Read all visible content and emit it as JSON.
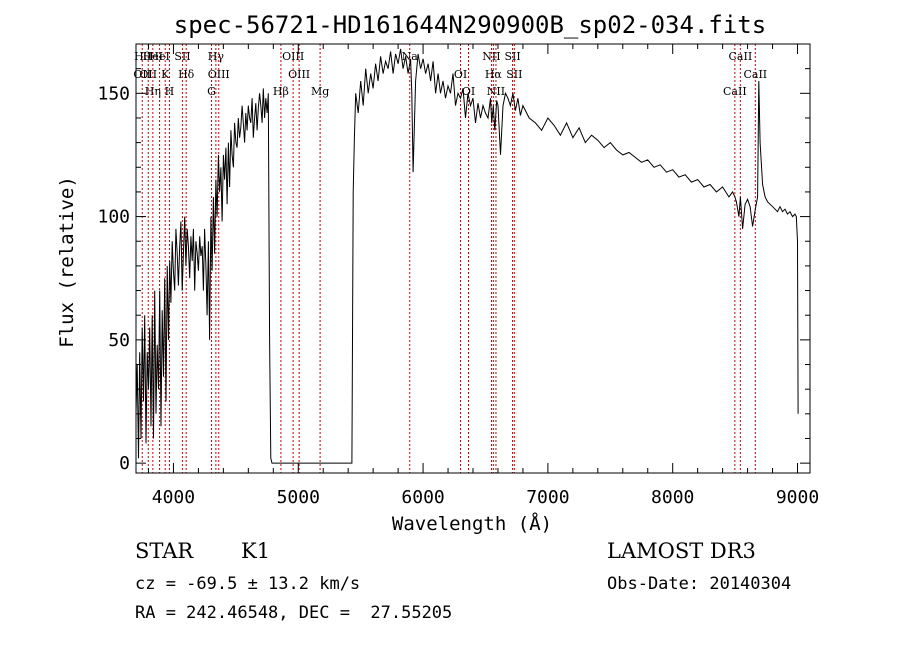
{
  "chart_data": {
    "type": "line",
    "title": "spec-56721-HD161644N290900B_sp02-034.fits",
    "xlabel": "Wavelength (Å)",
    "ylabel": "Flux (relative)",
    "xlim": [
      3700,
      9100
    ],
    "ylim": [
      -4,
      170
    ],
    "x_ticks": [
      4000,
      5000,
      6000,
      7000,
      8000,
      9000
    ],
    "x_tick_labels": [
      "4000",
      "5000",
      "6000",
      "7000",
      "8000",
      "9000"
    ],
    "y_ticks": [
      0,
      50,
      100,
      150
    ],
    "y_tick_labels": [
      "0",
      "50",
      "100",
      "150"
    ],
    "grid": false,
    "series": [
      {
        "name": "spectrum",
        "x": [
          3700,
          3710,
          3720,
          3730,
          3740,
          3750,
          3760,
          3770,
          3780,
          3790,
          3800,
          3810,
          3820,
          3830,
          3840,
          3850,
          3860,
          3870,
          3880,
          3890,
          3900,
          3910,
          3920,
          3930,
          3940,
          3950,
          3960,
          3970,
          3980,
          3990,
          4000,
          4010,
          4020,
          4030,
          4040,
          4050,
          4060,
          4070,
          4080,
          4090,
          4100,
          4110,
          4120,
          4130,
          4140,
          4150,
          4160,
          4170,
          4180,
          4190,
          4200,
          4210,
          4220,
          4230,
          4240,
          4250,
          4260,
          4270,
          4280,
          4290,
          4300,
          4310,
          4320,
          4330,
          4340,
          4350,
          4360,
          4370,
          4380,
          4390,
          4400,
          4410,
          4420,
          4430,
          4440,
          4450,
          4460,
          4470,
          4480,
          4490,
          4500,
          4510,
          4520,
          4530,
          4540,
          4550,
          4560,
          4570,
          4580,
          4590,
          4600,
          4610,
          4620,
          4630,
          4640,
          4650,
          4660,
          4670,
          4680,
          4690,
          4700,
          4710,
          4720,
          4730,
          4740,
          4750,
          4760,
          4770,
          4780,
          4790,
          4800,
          5000,
          5200,
          5420,
          5430,
          5440,
          5450,
          5460,
          5480,
          5500,
          5520,
          5540,
          5560,
          5580,
          5600,
          5620,
          5640,
          5660,
          5680,
          5700,
          5720,
          5740,
          5760,
          5780,
          5800,
          5820,
          5840,
          5860,
          5880,
          5900,
          5910,
          5920,
          5940,
          5960,
          5980,
          6000,
          6020,
          6040,
          6060,
          6080,
          6100,
          6120,
          6140,
          6160,
          6180,
          6200,
          6220,
          6240,
          6260,
          6280,
          6300,
          6320,
          6340,
          6360,
          6380,
          6400,
          6420,
          6440,
          6460,
          6480,
          6500,
          6520,
          6540,
          6550,
          6563,
          6575,
          6590,
          6600,
          6620,
          6640,
          6660,
          6680,
          6700,
          6720,
          6740,
          6760,
          6780,
          6800,
          6850,
          6900,
          6950,
          7000,
          7050,
          7100,
          7150,
          7200,
          7250,
          7300,
          7350,
          7400,
          7450,
          7500,
          7550,
          7600,
          7650,
          7700,
          7750,
          7800,
          7850,
          7900,
          7950,
          8000,
          8050,
          8100,
          8150,
          8200,
          8250,
          8300,
          8350,
          8400,
          8450,
          8480,
          8498,
          8510,
          8530,
          8542,
          8560,
          8580,
          8600,
          8620,
          8640,
          8662,
          8680,
          8690,
          8700,
          8720,
          8740,
          8760,
          8780,
          8800,
          8820,
          8840,
          8860,
          8880,
          8900,
          8920,
          8940,
          8960,
          8980,
          8990,
          9000,
          9005
        ],
        "y": [
          20,
          40,
          2,
          45,
          10,
          55,
          25,
          60,
          8,
          45,
          30,
          55,
          15,
          60,
          10,
          70,
          20,
          48,
          30,
          70,
          15,
          62,
          35,
          75,
          25,
          80,
          50,
          82,
          65,
          90,
          78,
          70,
          95,
          85,
          72,
          88,
          98,
          70,
          85,
          100,
          80,
          95,
          88,
          75,
          92,
          82,
          95,
          70,
          90,
          85,
          78,
          92,
          84,
          88,
          70,
          95,
          80,
          60,
          90,
          50,
          100,
          78,
          108,
          85,
          115,
          100,
          125,
          110,
          120,
          98,
          125,
          115,
          128,
          105,
          130,
          112,
          135,
          125,
          120,
          138,
          130,
          128,
          140,
          132,
          136,
          145,
          138,
          130,
          142,
          135,
          145,
          140,
          138,
          148,
          132,
          140,
          146,
          135,
          144,
          150,
          145,
          138,
          152,
          140,
          148,
          142,
          150,
          50,
          2,
          0,
          0,
          0,
          0,
          0,
          0,
          110,
          132,
          150,
          142,
          155,
          145,
          160,
          150,
          158,
          152,
          162,
          155,
          165,
          158,
          163,
          160,
          167,
          158,
          166,
          162,
          168,
          160,
          165,
          158,
          164,
          150,
          118,
          155,
          166,
          160,
          164,
          158,
          162,
          155,
          163,
          150,
          158,
          150,
          155,
          148,
          153,
          150,
          158,
          145,
          150,
          148,
          152,
          140,
          150,
          145,
          148,
          138,
          146,
          140,
          145,
          142,
          140,
          148,
          138,
          145,
          135,
          147,
          145,
          125,
          145,
          150,
          148,
          145,
          150,
          143,
          148,
          141,
          145,
          140,
          138,
          135,
          140,
          137,
          133,
          138,
          132,
          136,
          130,
          133,
          131,
          128,
          130,
          127,
          125,
          126,
          124,
          122,
          123,
          120,
          121,
          118,
          119,
          116,
          117,
          114,
          115,
          112,
          113,
          110,
          112,
          108,
          110,
          108,
          106,
          100,
          108,
          95,
          105,
          107,
          104,
          96,
          103,
          108,
          155,
          130,
          113,
          108,
          106,
          105,
          104,
          103,
          102,
          104,
          102,
          103,
          101,
          102,
          100,
          101,
          100,
          90,
          20
        ]
      }
    ],
    "lines": [
      {
        "wavelength": 3750,
        "labels": [
          "Hθ",
          "OII"
        ]
      },
      {
        "wavelength": 3798,
        "labels": [
          "OII"
        ]
      },
      {
        "wavelength": 3835,
        "labels": [
          "Hη",
          "HeI"
        ]
      },
      {
        "wavelength": 3889,
        "labels": [
          "HeI"
        ]
      },
      {
        "wavelength": 3934,
        "labels": [
          "K"
        ]
      },
      {
        "wavelength": 3968,
        "labels": [
          "H"
        ]
      },
      {
        "wavelength": 4072,
        "labels": [
          "SII"
        ]
      },
      {
        "wavelength": 4102,
        "labels": [
          "Hδ"
        ]
      },
      {
        "wavelength": 4305,
        "labels": [
          "G"
        ]
      },
      {
        "wavelength": 4340,
        "labels": [
          "Hγ"
        ]
      },
      {
        "wavelength": 4363,
        "labels": [
          "OIII"
        ]
      },
      {
        "wavelength": 4861,
        "labels": [
          "Hβ"
        ]
      },
      {
        "wavelength": 4959,
        "labels": [
          "OIII"
        ]
      },
      {
        "wavelength": 5007,
        "labels": [
          "OIII"
        ]
      },
      {
        "wavelength": 5175,
        "labels": [
          "Mg"
        ]
      },
      {
        "wavelength": 5893,
        "labels": [
          "Na"
        ]
      },
      {
        "wavelength": 6300,
        "labels": [
          "OI"
        ]
      },
      {
        "wavelength": 6364,
        "labels": [
          "OI"
        ]
      },
      {
        "wavelength": 6548,
        "labels": [
          "NII"
        ]
      },
      {
        "wavelength": 6563,
        "labels": [
          "Hα"
        ]
      },
      {
        "wavelength": 6584,
        "labels": [
          "NII"
        ]
      },
      {
        "wavelength": 6717,
        "labels": [
          "SII"
        ]
      },
      {
        "wavelength": 6731,
        "labels": [
          "SII"
        ]
      },
      {
        "wavelength": 8498,
        "labels": [
          "CaII"
        ]
      },
      {
        "wavelength": 8542,
        "labels": [
          "CaII"
        ]
      },
      {
        "wavelength": 8662,
        "labels": [
          "CaII"
        ]
      }
    ]
  },
  "info": {
    "class": "STAR",
    "subclass": "K1",
    "survey": "LAMOST DR3",
    "redshift": "cz = -69.5 ± 13.2 km/s",
    "obs_date": "Obs-Date: 20140304",
    "coords": "RA = 242.46548, DEC =  27.55205"
  },
  "colors": {
    "spectrum": "#000000",
    "line_marker": "#cc0000",
    "axes": "#000000"
  }
}
